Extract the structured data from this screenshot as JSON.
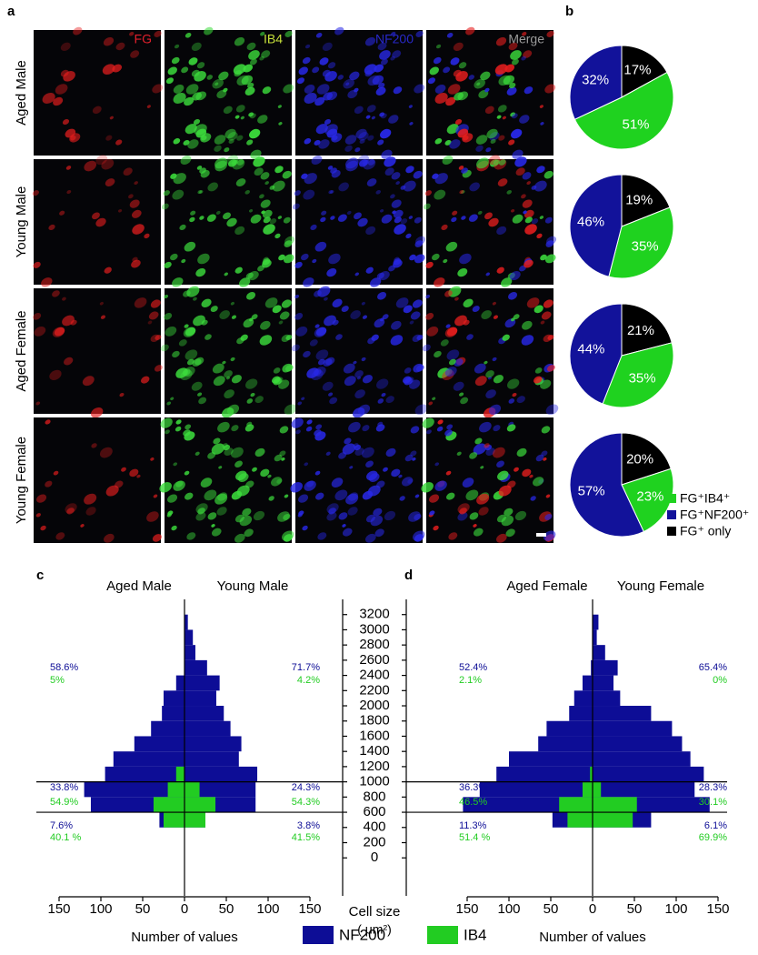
{
  "panel_a": {
    "label": "a",
    "columns": [
      "FG",
      "IB4",
      "NF200",
      "Merge"
    ],
    "column_colors": [
      "#e2202c",
      "#c6e03a",
      "#2828c8",
      "#9a9a9a"
    ],
    "rows": [
      "Aged Male",
      "Young Male",
      "Aged Female",
      "Young Female"
    ]
  },
  "panel_b": {
    "label": "b",
    "legend": [
      {
        "label": "FG⁺IB4⁺",
        "color": "#1fd21f"
      },
      {
        "label": "FG⁺NF200⁺",
        "color": "#12129a"
      },
      {
        "label": "FG⁺ only",
        "color": "#000000"
      }
    ]
  },
  "chart_data": [
    {
      "type": "pie",
      "values": [
        17,
        51,
        32
      ],
      "value_labels": [
        "17%",
        "51%",
        "32%"
      ],
      "colors": [
        "#000000",
        "#1fd21f",
        "#12129a"
      ]
    },
    {
      "type": "pie",
      "values": [
        19,
        35,
        46
      ],
      "value_labels": [
        "19%",
        "35%",
        "46%"
      ],
      "colors": [
        "#000000",
        "#1fd21f",
        "#12129a"
      ]
    },
    {
      "type": "pie",
      "values": [
        21,
        35,
        44
      ],
      "value_labels": [
        "21%",
        "35%",
        "44%"
      ],
      "colors": [
        "#000000",
        "#1fd21f",
        "#12129a"
      ]
    },
    {
      "type": "pie",
      "values": [
        20,
        23,
        57
      ],
      "value_labels": [
        "20%",
        "23%",
        "57%"
      ],
      "colors": [
        "#000000",
        "#1fd21f",
        "#12129a"
      ]
    },
    {
      "type": "pyramid",
      "label": "c",
      "left_title": "Aged Male",
      "right_title": "Young Male",
      "xlabel": "Number of values",
      "xlim": [
        -150,
        150
      ],
      "xticks": [
        {
          "value": -150,
          "label": "150"
        },
        {
          "value": -100,
          "label": "100"
        },
        {
          "value": -50,
          "label": "50"
        },
        0,
        50,
        100,
        150
      ],
      "bins": [
        400,
        600,
        800,
        1000,
        1200,
        1400,
        1600,
        1800,
        2000,
        2200,
        2400,
        2600,
        2800,
        3000,
        3200
      ],
      "dividers": [
        600,
        1000
      ],
      "left": [
        [
          30,
          112,
          120,
          95,
          85,
          60,
          40,
          27,
          25,
          10,
          0,
          0,
          0,
          0
        ],
        [
          25,
          37,
          20,
          10,
          0,
          0,
          0,
          0,
          0,
          0,
          0,
          0,
          0,
          0
        ]
      ],
      "right": [
        [
          25,
          85,
          85,
          87,
          65,
          68,
          55,
          47,
          38,
          42,
          27,
          13,
          10,
          4
        ],
        [
          25,
          37,
          18,
          0,
          0,
          0,
          0,
          0,
          0,
          0,
          0,
          0,
          0,
          0
        ]
      ],
      "notes_left": [
        [
          "58.6%",
          "5%"
        ],
        [
          "33.8%",
          "54.9%"
        ],
        [
          "7.6%",
          "40.1 %"
        ]
      ],
      "notes_right": [
        [
          "71.7%",
          "4.2%"
        ],
        [
          "24.3%",
          "54.3%"
        ],
        [
          "3.8%",
          "41.5%"
        ]
      ]
    },
    {
      "type": "pyramid",
      "label": "d",
      "left_title": "Aged Female",
      "right_title": "Young Female",
      "xlabel": "Number of values",
      "xlim": [
        -150,
        150
      ],
      "xticks": [
        {
          "value": -150,
          "label": "150"
        },
        {
          "value": -100,
          "label": "100"
        },
        {
          "value": -50,
          "label": "50"
        },
        0,
        50,
        100,
        150
      ],
      "bins": [
        400,
        600,
        800,
        1000,
        1200,
        1400,
        1600,
        1800,
        2000,
        2200,
        2400,
        2600,
        2800,
        3000,
        3200
      ],
      "dividers": [
        600,
        1000
      ],
      "left": [
        [
          48,
          155,
          135,
          115,
          100,
          65,
          55,
          28,
          22,
          12,
          2,
          0,
          0,
          0
        ],
        [
          30,
          40,
          12,
          3,
          0,
          0,
          0,
          0,
          0,
          0,
          0,
          0,
          0,
          0
        ]
      ],
      "right": [
        [
          70,
          140,
          122,
          133,
          117,
          107,
          95,
          70,
          33,
          25,
          30,
          15,
          5,
          7
        ],
        [
          48,
          53,
          10,
          0,
          0,
          0,
          0,
          0,
          0,
          0,
          0,
          0,
          0,
          0
        ]
      ],
      "notes_left": [
        [
          "52.4%",
          "2.1%"
        ],
        [
          "36.3%",
          "46.5%"
        ],
        [
          "11.3%",
          "51.4 %"
        ]
      ],
      "notes_right": [
        [
          "65.4%",
          "0%"
        ],
        [
          "28.3%",
          "30.1%"
        ],
        [
          "6.1%",
          "69.9%"
        ]
      ]
    }
  ],
  "size_axis": {
    "label": "Cell size",
    "unit": "( μm²)",
    "ylim": [
      -500,
      3400
    ],
    "yticks": [
      0,
      200,
      400,
      600,
      800,
      1000,
      1200,
      1400,
      1600,
      1800,
      2000,
      2200,
      2400,
      2600,
      2800,
      3000,
      3200
    ]
  },
  "legend": [
    {
      "name": "NF200",
      "color": "#0d0d96"
    },
    {
      "name": "IB4",
      "color": "#22cc22"
    }
  ]
}
